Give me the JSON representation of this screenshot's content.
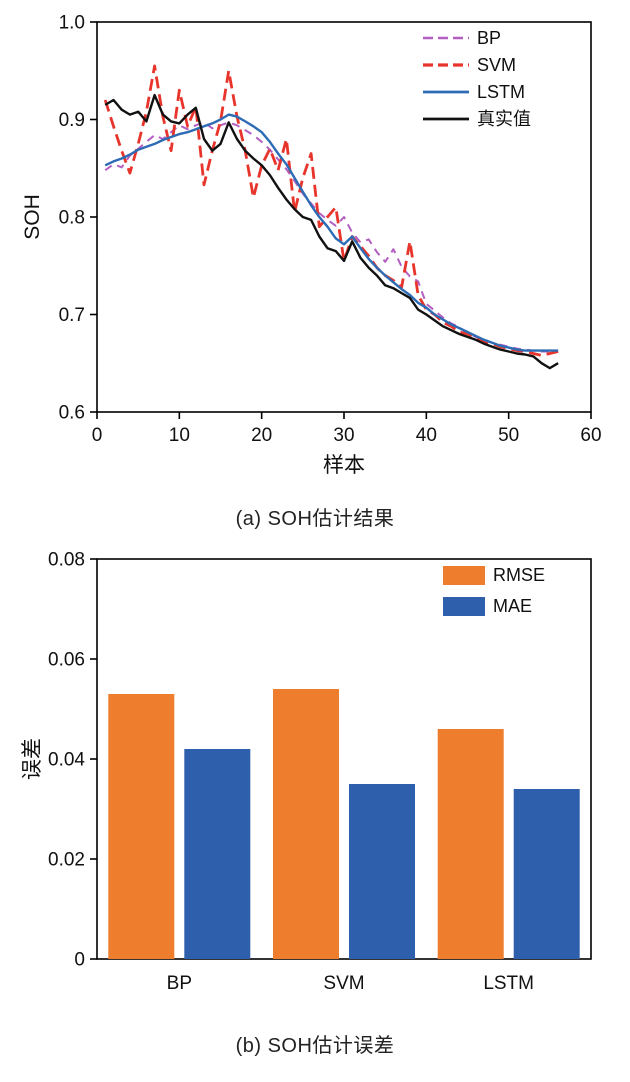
{
  "page": {
    "background": "#ffffff"
  },
  "figure_a": {
    "caption": "(a) SOH估计结果"
  },
  "figure_b": {
    "caption": "(b) SOH估计误差"
  },
  "chart_data": [
    {
      "type": "line",
      "title": "",
      "xlabel": "样本",
      "ylabel": "SOH",
      "xlim": [
        0,
        60
      ],
      "ylim": [
        0.6,
        1.0
      ],
      "xticks": [
        0,
        10,
        20,
        30,
        40,
        50,
        60
      ],
      "xticklabels": [
        "0",
        "10",
        "20",
        "30",
        "40",
        "50",
        "60"
      ],
      "yticks": [
        0.6,
        0.7,
        0.8,
        0.9,
        1.0
      ],
      "yticklabels": [
        "0.6",
        "0.7",
        "0.8",
        "0.9",
        "1.0"
      ],
      "grid": false,
      "legend_position": "top-right",
      "x": [
        1,
        2,
        3,
        4,
        5,
        6,
        7,
        8,
        9,
        10,
        11,
        12,
        13,
        14,
        15,
        16,
        17,
        18,
        19,
        20,
        21,
        22,
        23,
        24,
        25,
        26,
        27,
        28,
        29,
        30,
        31,
        32,
        33,
        34,
        35,
        36,
        37,
        38,
        39,
        40,
        41,
        42,
        43,
        44,
        45,
        46,
        47,
        48,
        49,
        50,
        51,
        52,
        53,
        54,
        55,
        56
      ],
      "series": [
        {
          "name": "BP",
          "color": "#b35fc2",
          "style": "dashed",
          "width": 2,
          "dash": "8 6",
          "values": [
            0.848,
            0.854,
            0.851,
            0.863,
            0.87,
            0.877,
            0.884,
            0.88,
            0.887,
            0.894,
            0.89,
            0.894,
            0.897,
            0.891,
            0.894,
            0.897,
            0.894,
            0.889,
            0.884,
            0.877,
            0.869,
            0.859,
            0.849,
            0.837,
            0.824,
            0.814,
            0.804,
            0.797,
            0.791,
            0.8,
            0.784,
            0.774,
            0.777,
            0.764,
            0.754,
            0.767,
            0.749,
            0.739,
            0.734,
            0.711,
            0.704,
            0.697,
            0.691,
            0.687,
            0.681,
            0.677,
            0.674,
            0.671,
            0.669,
            0.667,
            0.665,
            0.664,
            0.663,
            0.662,
            0.662,
            0.663
          ]
        },
        {
          "name": "SVM",
          "color": "#e8352c",
          "style": "dashed",
          "width": 2.8,
          "dash": "12 6",
          "values": [
            0.92,
            0.893,
            0.868,
            0.845,
            0.875,
            0.908,
            0.955,
            0.903,
            0.868,
            0.93,
            0.893,
            0.913,
            0.833,
            0.868,
            0.898,
            0.95,
            0.903,
            0.868,
            0.82,
            0.853,
            0.87,
            0.848,
            0.88,
            0.805,
            0.84,
            0.865,
            0.79,
            0.8,
            0.81,
            0.755,
            0.78,
            0.77,
            0.76,
            0.748,
            0.74,
            0.735,
            0.728,
            0.775,
            0.72,
            0.705,
            0.7,
            0.692,
            0.688,
            0.682,
            0.68,
            0.676,
            0.672,
            0.67,
            0.667,
            0.665,
            0.663,
            0.662,
            0.66,
            0.658,
            0.66,
            0.662
          ]
        },
        {
          "name": "LSTM",
          "color": "#2d6bb4",
          "style": "solid",
          "width": 2.4,
          "dash": "",
          "values": [
            0.853,
            0.857,
            0.86,
            0.864,
            0.869,
            0.872,
            0.875,
            0.879,
            0.882,
            0.885,
            0.887,
            0.89,
            0.893,
            0.896,
            0.9,
            0.905,
            0.903,
            0.898,
            0.893,
            0.887,
            0.877,
            0.865,
            0.854,
            0.84,
            0.826,
            0.812,
            0.8,
            0.79,
            0.778,
            0.772,
            0.78,
            0.768,
            0.757,
            0.748,
            0.74,
            0.733,
            0.726,
            0.72,
            0.712,
            0.707,
            0.7,
            0.695,
            0.69,
            0.686,
            0.682,
            0.678,
            0.674,
            0.671,
            0.668,
            0.666,
            0.664,
            0.663,
            0.663,
            0.663,
            0.663,
            0.663
          ]
        },
        {
          "name": "真实值",
          "color": "#111111",
          "style": "solid",
          "width": 2.4,
          "dash": "",
          "values": [
            0.915,
            0.92,
            0.91,
            0.905,
            0.908,
            0.898,
            0.925,
            0.905,
            0.898,
            0.896,
            0.905,
            0.912,
            0.88,
            0.868,
            0.875,
            0.897,
            0.88,
            0.868,
            0.86,
            0.853,
            0.843,
            0.83,
            0.818,
            0.808,
            0.8,
            0.797,
            0.78,
            0.768,
            0.765,
            0.755,
            0.775,
            0.758,
            0.748,
            0.74,
            0.73,
            0.727,
            0.722,
            0.717,
            0.705,
            0.7,
            0.694,
            0.688,
            0.684,
            0.68,
            0.677,
            0.674,
            0.67,
            0.667,
            0.664,
            0.662,
            0.66,
            0.659,
            0.657,
            0.65,
            0.645,
            0.65
          ]
        }
      ]
    },
    {
      "type": "bar",
      "title": "",
      "xlabel": "",
      "ylabel": "误差",
      "ylim": [
        0,
        0.08
      ],
      "yticks": [
        0,
        0.02,
        0.04,
        0.06,
        0.08
      ],
      "yticklabels": [
        "0",
        "0.02",
        "0.04",
        "0.06",
        "0.08"
      ],
      "grid": false,
      "legend_position": "top-right",
      "categories": [
        "BP",
        "SVM",
        "LSTM"
      ],
      "series": [
        {
          "name": "RMSE",
          "color": "#ee7d2e",
          "values": [
            0.053,
            0.054,
            0.046
          ]
        },
        {
          "name": "MAE",
          "color": "#2e5fac",
          "values": [
            0.042,
            0.035,
            0.034
          ]
        }
      ]
    }
  ]
}
